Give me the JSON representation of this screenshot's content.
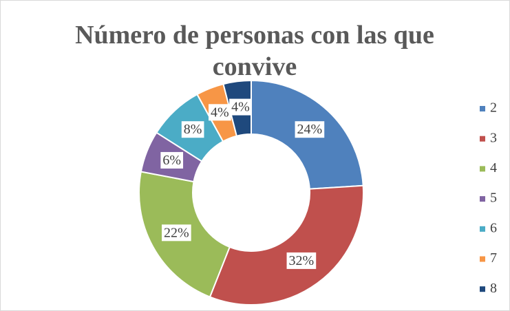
{
  "chart_data": {
    "type": "donut",
    "title": "Número de personas con las que convive",
    "categories": [
      "2",
      "3",
      "4",
      "5",
      "6",
      "7",
      "8"
    ],
    "values": [
      24,
      32,
      22,
      6,
      8,
      4,
      4
    ],
    "value_labels": [
      "24%",
      "32%",
      "22%",
      "6%",
      "8%",
      "4%",
      "4%"
    ],
    "colors": [
      "#4f81bd",
      "#c0504d",
      "#9bbb59",
      "#8064a2",
      "#4bacc6",
      "#f79646",
      "#1f497d"
    ],
    "legend": "right"
  }
}
